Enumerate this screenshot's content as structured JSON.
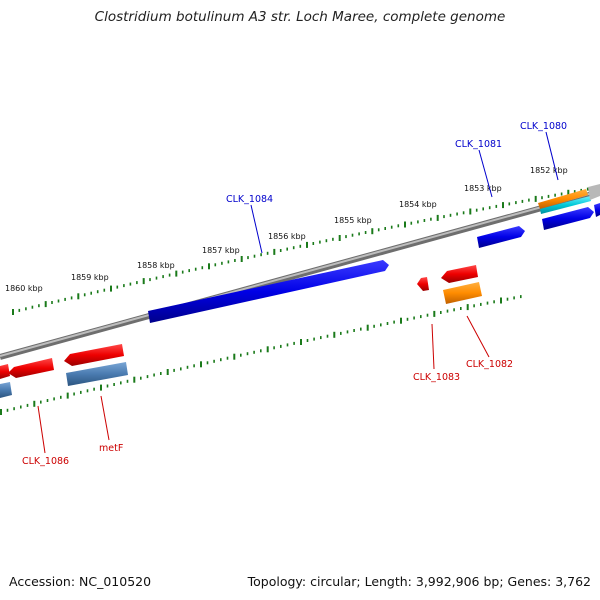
{
  "title": "Clostridium botulinum A3 str. Loch Maree, complete genome",
  "footer": {
    "accession": "Accession: NC_010520",
    "summary": "Topology: circular; Length: 3,992,906 bp; Genes: 3,762"
  },
  "scale": {
    "unit": "kbp",
    "labels": [
      "1860 kbp",
      "1859 kbp",
      "1858 kbp",
      "1857 kbp",
      "1856 kbp",
      "1855 kbp",
      "1854 kbp",
      "1853 kbp",
      "1852 kbp"
    ]
  },
  "colors": {
    "forward_gene": "#0000e6",
    "reverse_gene": "#ee0000",
    "orange_feature": "#ff8c00",
    "cyan_feature": "#00c8d8",
    "steel_feature": "#4a7bb0",
    "tick": "#1a7a1a",
    "backbone": "#888888",
    "forward_label": "#0000cc",
    "reverse_label": "#cc0000"
  },
  "labels": {
    "forward": [
      "CLK_1084",
      "CLK_1081",
      "CLK_1080"
    ],
    "reverse": [
      "CLK_1086",
      "metF",
      "CLK_1083",
      "CLK_1082"
    ]
  }
}
